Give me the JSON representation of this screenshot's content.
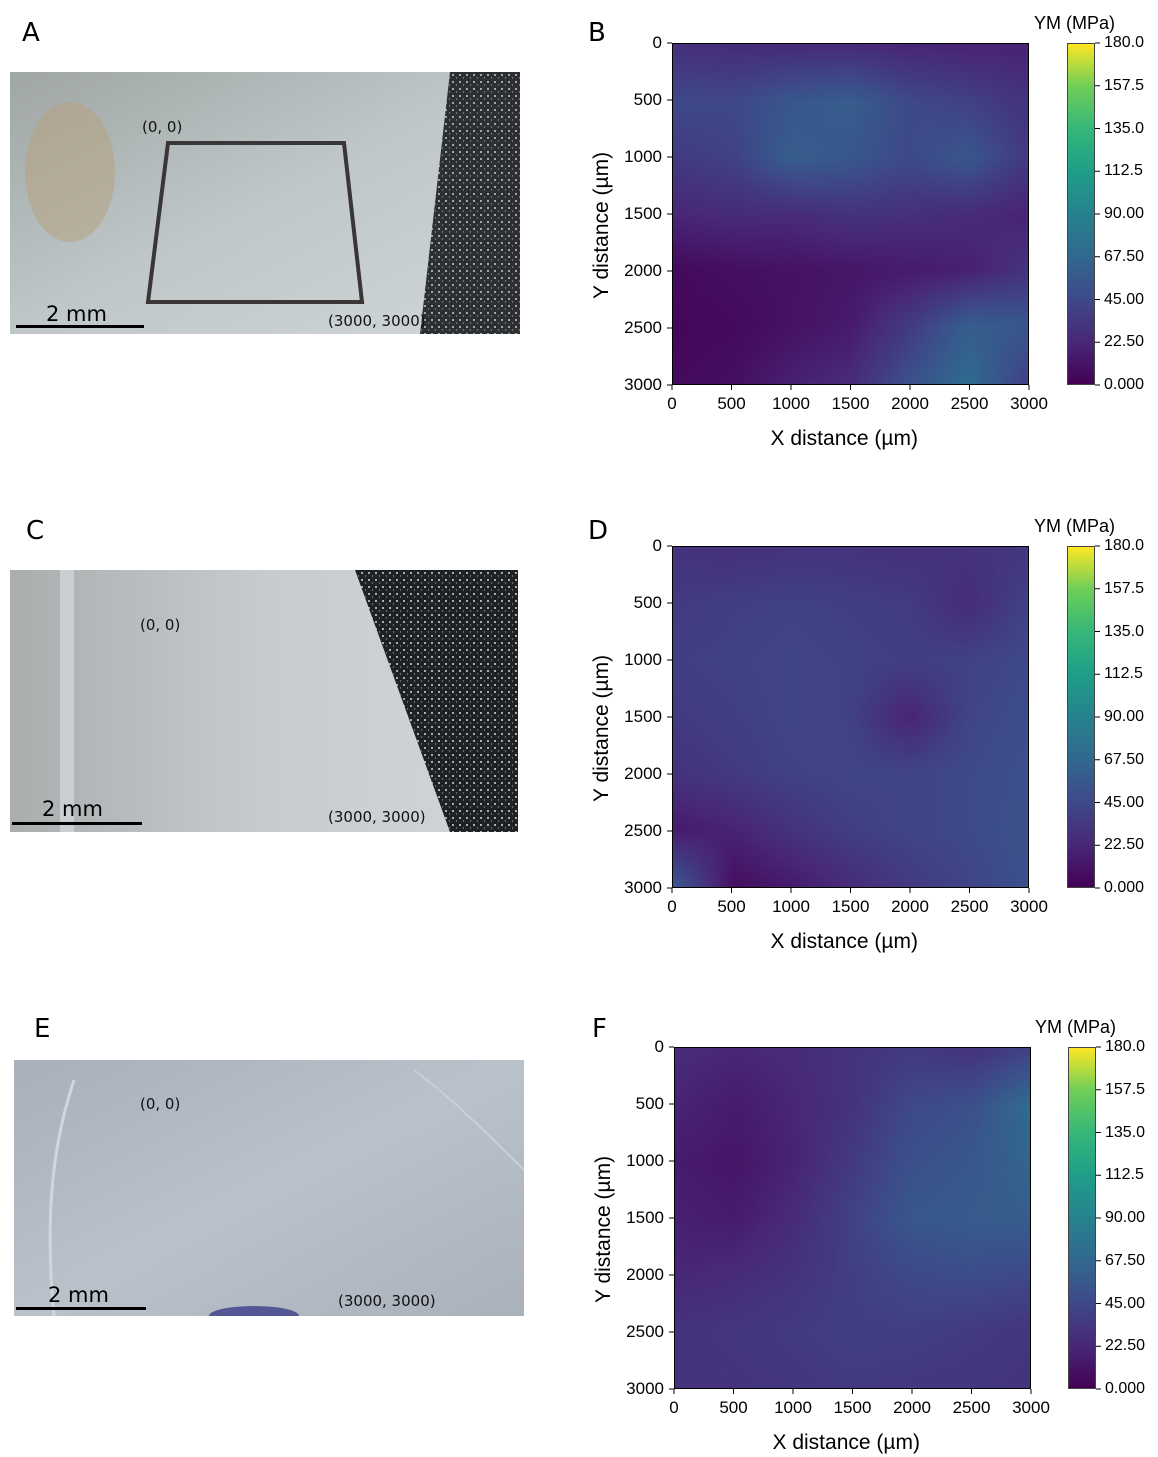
{
  "panels": {
    "A": "A",
    "B": "B",
    "C": "C",
    "D": "D",
    "E": "E",
    "F": "F"
  },
  "photo_labels": {
    "origin": "(0, 0)",
    "corner": "(3000, 3000)",
    "scale_bar": "2 mm"
  },
  "colors": {
    "frame": "#3a3536",
    "viridis_low": "#440154",
    "viridis_high": "#fde725"
  },
  "chart_data": [
    {
      "type": "heatmap",
      "panel": "B",
      "xlabel": "X distance (µm)",
      "ylabel": "Y distance (µm)",
      "colorbar_title": "YM (MPa)",
      "x_ticks": [
        "0",
        "500",
        "1000",
        "1500",
        "2000",
        "2500",
        "3000"
      ],
      "y_ticks": [
        "0",
        "500",
        "1000",
        "1500",
        "2000",
        "2500",
        "3000"
      ],
      "colorbar_ticks": [
        "180.0",
        "157.5",
        "135.0",
        "112.5",
        "90.00",
        "67.50",
        "45.00",
        "22.50",
        "0.000"
      ],
      "xlim": [
        0,
        3000
      ],
      "ylim": [
        3000,
        0
      ],
      "zlim": [
        0,
        180
      ],
      "grid_x": [
        0,
        500,
        1000,
        1500,
        2000,
        2500,
        3000
      ],
      "grid_y": [
        0,
        500,
        1000,
        1500,
        2000,
        2500,
        3000
      ],
      "z": [
        [
          28,
          26,
          25,
          25,
          22,
          20,
          20
        ],
        [
          45,
          44,
          55,
          60,
          45,
          40,
          30
        ],
        [
          35,
          40,
          60,
          55,
          45,
          55,
          35
        ],
        [
          22,
          25,
          25,
          30,
          28,
          25,
          20
        ],
        [
          5,
          8,
          10,
          12,
          15,
          18,
          30
        ],
        [
          3,
          5,
          10,
          15,
          35,
          60,
          55
        ],
        [
          5,
          8,
          18,
          25,
          50,
          70,
          40
        ]
      ]
    },
    {
      "type": "heatmap",
      "panel": "D",
      "xlabel": "X distance (µm)",
      "ylabel": "Y distance (µm)",
      "colorbar_title": "YM (MPa)",
      "x_ticks": [
        "0",
        "500",
        "1000",
        "1500",
        "2000",
        "2500",
        "3000"
      ],
      "y_ticks": [
        "0",
        "500",
        "1000",
        "1500",
        "2000",
        "2500",
        "3000"
      ],
      "colorbar_ticks": [
        "180.0",
        "157.5",
        "135.0",
        "112.5",
        "90.00",
        "67.50",
        "45.00",
        "22.50",
        "0.000"
      ],
      "xlim": [
        0,
        3000
      ],
      "ylim": [
        3000,
        0
      ],
      "zlim": [
        0,
        180
      ],
      "grid_x": [
        0,
        500,
        1000,
        1500,
        2000,
        2500,
        3000
      ],
      "grid_y": [
        0,
        500,
        1000,
        1500,
        2000,
        2500,
        3000
      ],
      "z": [
        [
          30,
          28,
          30,
          30,
          28,
          30,
          32
        ],
        [
          35,
          38,
          40,
          38,
          36,
          25,
          40
        ],
        [
          38,
          40,
          42,
          40,
          38,
          40,
          45
        ],
        [
          35,
          38,
          42,
          40,
          20,
          42,
          48
        ],
        [
          30,
          35,
          40,
          42,
          42,
          45,
          50
        ],
        [
          15,
          20,
          30,
          38,
          42,
          45,
          52
        ],
        [
          55,
          8,
          15,
          25,
          35,
          42,
          50
        ]
      ]
    },
    {
      "type": "heatmap",
      "panel": "F",
      "xlabel": "X distance (µm)",
      "ylabel": "Y distance (µm)",
      "colorbar_title": "YM (MPa)",
      "x_ticks": [
        "0",
        "500",
        "1000",
        "1500",
        "2000",
        "2500",
        "3000"
      ],
      "y_ticks": [
        "0",
        "500",
        "1000",
        "1500",
        "2000",
        "2500",
        "3000"
      ],
      "colorbar_ticks": [
        "180.0",
        "157.5",
        "135.0",
        "112.5",
        "90.00",
        "67.50",
        "45.00",
        "22.50",
        "0.000"
      ],
      "xlim": [
        0,
        3000
      ],
      "ylim": [
        3000,
        0
      ],
      "zlim": [
        0,
        180
      ],
      "grid_x": [
        0,
        500,
        1000,
        1500,
        2000,
        2500,
        3000
      ],
      "grid_y": [
        0,
        500,
        1000,
        1500,
        2000,
        2500,
        3000
      ],
      "z": [
        [
          25,
          22,
          25,
          30,
          35,
          30,
          40
        ],
        [
          20,
          15,
          22,
          30,
          45,
          50,
          70
        ],
        [
          15,
          12,
          20,
          35,
          50,
          55,
          65
        ],
        [
          18,
          15,
          25,
          40,
          55,
          58,
          60
        ],
        [
          22,
          25,
          30,
          38,
          45,
          48,
          45
        ],
        [
          30,
          32,
          35,
          38,
          38,
          35,
          32
        ],
        [
          30,
          30,
          32,
          35,
          33,
          32,
          30
        ]
      ]
    }
  ]
}
